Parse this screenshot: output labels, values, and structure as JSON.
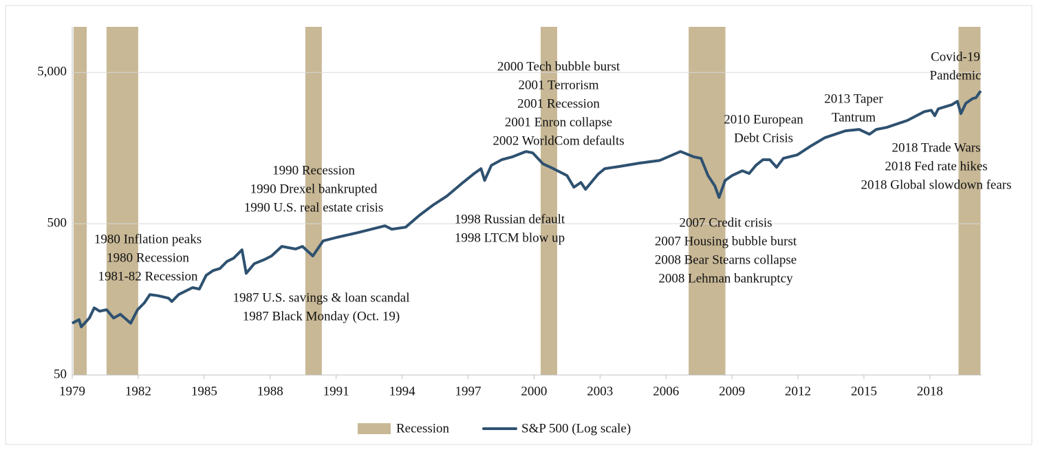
{
  "chart_data": {
    "type": "line",
    "log_y": true,
    "grid": true,
    "legend": "bottom",
    "xlim": [
      1979,
      2020.35
    ],
    "ylim": [
      50,
      10000
    ],
    "xticks": [
      1979,
      1982,
      1985,
      1988,
      1991,
      1994,
      1997,
      2000,
      2003,
      2006,
      2009,
      2012,
      2015,
      2018
    ],
    "yticks": [
      50,
      500,
      {
        "value": 5000,
        "label": "5,000"
      }
    ],
    "bands": {
      "name": "Recession",
      "color": "#c8b896",
      "ranges": [
        [
          1979.06,
          1979.66
        ],
        [
          1980.56,
          1982.0
        ],
        [
          1989.6,
          1990.35
        ],
        [
          2000.3,
          2001.05
        ],
        [
          2007.03,
          2008.7
        ],
        [
          2019.3,
          2020.3
        ]
      ]
    },
    "series": [
      {
        "name": "S&P 500 (Log scale)",
        "color": "#2e5170",
        "x": [
          1979.0,
          1979.31,
          1979.41,
          1979.78,
          1980.0,
          1980.25,
          1980.56,
          1980.88,
          1981.19,
          1981.66,
          1981.97,
          1982.28,
          1982.53,
          1982.91,
          1983.38,
          1983.53,
          1983.84,
          1984.47,
          1984.78,
          1985.09,
          1985.41,
          1985.72,
          1986.03,
          1986.34,
          1986.72,
          1986.91,
          1987.28,
          1987.75,
          1988.06,
          1988.53,
          1989.16,
          1989.47,
          1989.94,
          1990.41,
          1991.03,
          1991.97,
          1993.22,
          1993.53,
          1994.16,
          1994.78,
          1995.41,
          1996.03,
          1996.66,
          1997.28,
          1997.59,
          1997.75,
          1998.06,
          1998.53,
          1999.0,
          1999.63,
          1999.94,
          2000.41,
          2000.88,
          2001.5,
          2001.81,
          2002.13,
          2002.34,
          2002.91,
          2003.22,
          2003.84,
          2004.78,
          2005.72,
          2006.66,
          2007.28,
          2007.59,
          2007.91,
          2008.22,
          2008.41,
          2008.69,
          2009.0,
          2009.47,
          2009.78,
          2010.09,
          2010.41,
          2010.72,
          2011.03,
          2011.34,
          2011.97,
          2012.59,
          2013.22,
          2014.16,
          2014.78,
          2015.25,
          2015.56,
          2016.03,
          2016.97,
          2017.75,
          2018.06,
          2018.22,
          2018.38,
          2019.0,
          2019.25,
          2019.41,
          2019.63,
          2019.94,
          2020.09,
          2020.31
        ],
        "values": [
          110,
          116,
          104,
          119,
          139,
          132,
          135,
          119,
          126,
          110,
          135,
          150,
          170,
          167,
          161,
          153,
          170,
          189,
          185,
          228,
          245,
          253,
          281,
          296,
          336,
          235,
          272,
          290,
          306,
          354,
          340,
          354,
          306,
          385,
          406,
          436,
          484,
          460,
          474,
          567,
          664,
          760,
          908,
          1074,
          1156,
          966,
          1216,
          1324,
          1380,
          1500,
          1469,
          1242,
          1156,
          1040,
          871,
          937,
          844,
          1062,
          1156,
          1192,
          1256,
          1310,
          1500,
          1380,
          1352,
          1040,
          889,
          745,
          966,
          1040,
          1119,
          1074,
          1216,
          1324,
          1324,
          1180,
          1352,
          1425,
          1633,
          1849,
          2055,
          2099,
          1950,
          2099,
          2163,
          2404,
          2754,
          2812,
          2586,
          2871,
          3055,
          3222,
          2669,
          3119,
          3357,
          3396,
          3767
        ]
      }
    ],
    "annotations": [
      {
        "lines": [
          "1980 Inflation peaks",
          "1980 Recession",
          "1981-82 Recession"
        ]
      },
      {
        "lines": [
          "1987 U.S. savings & loan scandal",
          "1987 Black Monday (Oct. 19)"
        ]
      },
      {
        "lines": [
          "1990 Recession",
          "1990 Drexel bankrupted",
          "1990 U.S. real estate crisis"
        ]
      },
      {
        "lines": [
          "1998 Russian default",
          "1998 LTCM blow up"
        ]
      },
      {
        "lines": [
          "2000 Tech bubble burst",
          "2001 Terrorism",
          "2001 Recession",
          "2001 Enron collapse",
          "2002 WorldCom defaults"
        ]
      },
      {
        "lines": [
          "2007 Credit crisis",
          "2007 Housing bubble burst",
          "2008 Bear Stearns collapse",
          "2008 Lehman bankruptcy"
        ]
      },
      {
        "lines": [
          "2010 European",
          "Debt Crisis"
        ]
      },
      {
        "lines": [
          "2013 Taper",
          "Tantrum"
        ]
      },
      {
        "lines": [
          "Covid-19",
          "Pandemic"
        ]
      },
      {
        "lines": [
          "2018 Trade Wars",
          "2018 Fed rate hikes",
          "2018 Global slowdown fears"
        ]
      }
    ]
  }
}
